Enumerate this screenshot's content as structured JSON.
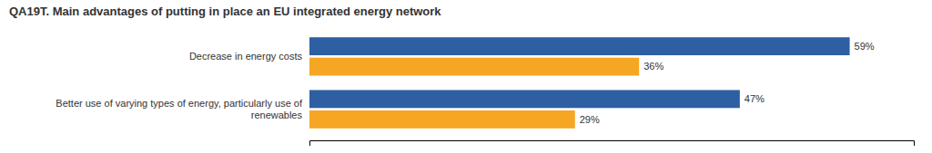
{
  "chart_data": {
    "type": "bar",
    "orientation": "horizontal",
    "title": "QA19T. Main advantages of putting in place an EU integrated energy network",
    "categories": [
      "Decrease in energy costs",
      "Better use of varying types of energy, particularly use of\nrenewables"
    ],
    "series": [
      {
        "color": "#2E5FA3",
        "values": [
          59,
          47
        ],
        "value_labels": [
          "59%",
          "47%"
        ]
      },
      {
        "color": "#F5A623",
        "values": [
          36,
          29
        ],
        "value_labels": [
          "36%",
          "29%"
        ]
      }
    ],
    "xlim": [
      0,
      66
    ],
    "data_labels": true,
    "tick_labels": false,
    "grid": false
  }
}
